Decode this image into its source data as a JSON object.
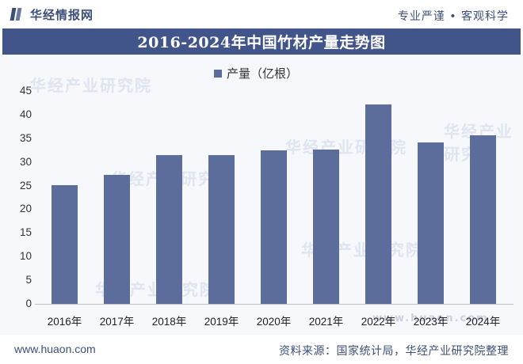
{
  "header": {
    "logo_text": "华经情报网",
    "slogan": "专业严谨 • 客观科学"
  },
  "title": "2016-2024年中国竹材产量走势图",
  "legend": {
    "label": "产量（亿根）",
    "color": "#5c6d9c"
  },
  "watermarks": [
    "华经产业研究院",
    "华经产业研究院",
    "华经产业研究院",
    "华经产业研究院",
    "华经产业研究院",
    "华经产业研究院",
    "www.huaon.com"
  ],
  "footer": {
    "url": "www.huaon.com",
    "source": "资料来源：国家统计局，华经产业研究院整理"
  },
  "colors": {
    "title_bar": "#42558a",
    "bar": "#5c6d9c",
    "brand": "#3c4e7a",
    "plot_bg": "#f6f8fc"
  },
  "chart_data": {
    "type": "bar",
    "title": "2016-2024年中国竹材产量走势图",
    "xlabel": "",
    "ylabel": "",
    "categories": [
      "2016年",
      "2017年",
      "2018年",
      "2019年",
      "2020年",
      "2021年",
      "2022年",
      "2023年",
      "2024年"
    ],
    "series": [
      {
        "name": "产量（亿根）",
        "values": [
          25.1,
          27.2,
          31.5,
          31.5,
          32.4,
          32.6,
          42.2,
          34.2,
          35.6
        ]
      }
    ],
    "ylim": [
      0,
      45
    ],
    "yticks": [
      0,
      5,
      10,
      15,
      20,
      25,
      30,
      35,
      40,
      45
    ],
    "grid": false,
    "legend_position": "top"
  }
}
